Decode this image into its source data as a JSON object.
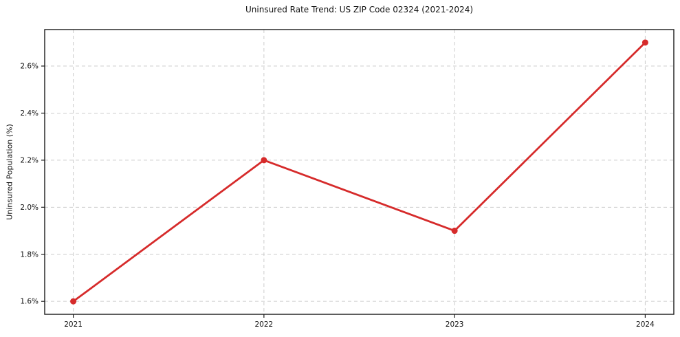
{
  "chart_data": {
    "type": "line",
    "title": "Uninsured Rate Trend: US ZIP Code 02324 (2021-2024)",
    "xlabel": "",
    "ylabel": "Uninsured Population (%)",
    "x": [
      2021,
      2022,
      2023,
      2024
    ],
    "series": [
      {
        "name": "uninsured-rate",
        "values": [
          1.6,
          2.2,
          1.9,
          2.7
        ]
      }
    ],
    "x_tick_labels": [
      "2021",
      "2022",
      "2023",
      "2024"
    ],
    "y_ticks": [
      1.6,
      1.8,
      2.0,
      2.2,
      2.4,
      2.6
    ],
    "y_tick_labels": [
      "1.6%",
      "1.8%",
      "2.0%",
      "2.2%",
      "2.4%",
      "2.6%"
    ],
    "xlim": [
      2020.85,
      2024.15
    ],
    "ylim": [
      1.545,
      2.755
    ],
    "grid": true,
    "grid_style": "dashed",
    "legend_position": "none",
    "colors": {
      "line": "#d62b2b",
      "marker": "#d62b2b",
      "grid": "#cccccc",
      "frame": "#1a1a1a",
      "tick": "#1a1a1a",
      "text": "#111111",
      "background": "#ffffff"
    }
  }
}
